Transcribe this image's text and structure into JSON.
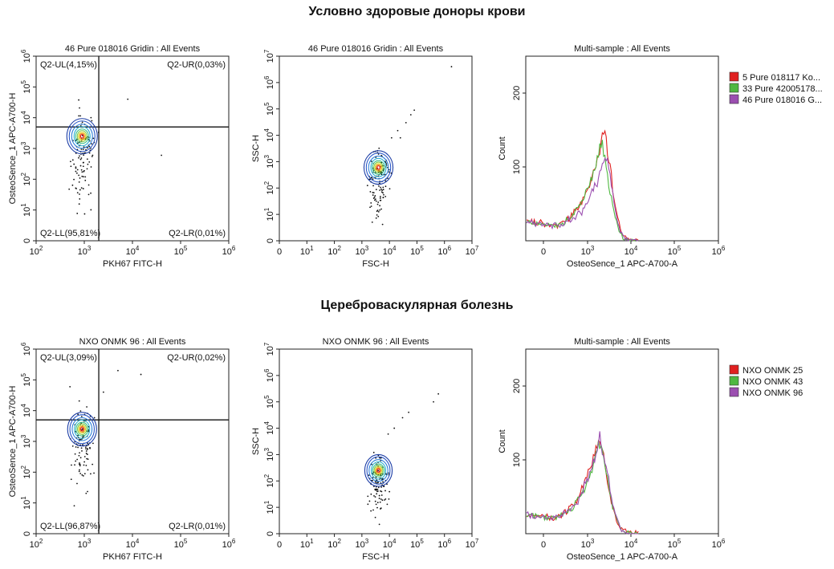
{
  "sections": [
    {
      "title": "Условно здоровые доноры крови"
    },
    {
      "title": "Цереброваскулярная болезнь"
    }
  ],
  "chart_data": [
    {
      "type": "contour",
      "title": "46 Pure 018016 Gridin : All Events",
      "xlabel": "PKH67 FITC-H",
      "ylabel": "OsteoSence_1 APC-A700-H",
      "x_scale": "log",
      "y_scale": "biexponential",
      "x_ticks": [
        "10^2",
        "10^3",
        "10^4",
        "10^5",
        "10^6"
      ],
      "y_ticks": [
        "0",
        "10^1",
        "10^2",
        "10^3",
        "10^4",
        "10^5",
        "10^6"
      ],
      "gate": {
        "x": 2000,
        "y": 5000
      },
      "quadrants": [
        {
          "name": "Q2-UL",
          "label": "Q2-UL(4,15%)",
          "value": 4.15
        },
        {
          "name": "Q2-UR",
          "label": "Q2-UR(0,03%)",
          "value": 0.03
        },
        {
          "name": "Q2-LL",
          "label": "Q2-LL(95,81%)",
          "value": 95.81
        },
        {
          "name": "Q2-LR",
          "label": "Q2-LR(0,01%)",
          "value": 0.01
        }
      ],
      "population_center": {
        "x": 900,
        "y": 2500
      }
    },
    {
      "type": "contour",
      "title": "46 Pure 018016 Gridin : All Events",
      "xlabel": "FSC-H",
      "ylabel": "SSC-H",
      "x_scale": "biexponential",
      "y_scale": "biexponential",
      "x_ticks": [
        "0",
        "10^1",
        "10^2",
        "10^3",
        "10^4",
        "10^5",
        "10^6",
        "10^7"
      ],
      "y_ticks": [
        "0",
        "10^1",
        "10^2",
        "10^3",
        "10^4",
        "10^5",
        "10^6",
        "10^7"
      ],
      "population_center": {
        "x": 4000,
        "y": 600
      }
    },
    {
      "type": "histogram",
      "title": "Multi-sample : All Events",
      "xlabel": "OsteoSence_1 APC-A700-A",
      "ylabel": "Count",
      "x_ticks": [
        "0",
        "10^3",
        "10^4",
        "10^5",
        "10^6"
      ],
      "y_ticks": [
        "100",
        "200"
      ],
      "ylim": [
        0,
        250
      ],
      "legend_position": "right",
      "series": [
        {
          "name": "5 Pure 018117 Ko...",
          "color": "#e02020",
          "peak_x": 2400,
          "peak": 145
        },
        {
          "name": "33 Pure 42005178...",
          "color": "#4fb840",
          "peak_x": 2100,
          "peak": 130
        },
        {
          "name": "46 Pure 018016 G...",
          "color": "#9b4fb0",
          "peak_x": 2600,
          "peak": 115
        }
      ]
    },
    {
      "type": "contour",
      "title": "NXO ONMK 96 : All Events",
      "xlabel": "PKH67 FITC-H",
      "ylabel": "OsteoSence_1 APC-A700-H",
      "x_scale": "log",
      "y_scale": "biexponential",
      "x_ticks": [
        "10^2",
        "10^3",
        "10^4",
        "10^5",
        "10^6"
      ],
      "y_ticks": [
        "0",
        "10^1",
        "10^2",
        "10^3",
        "10^4",
        "10^5",
        "10^6"
      ],
      "gate": {
        "x": 2000,
        "y": 5000
      },
      "quadrants": [
        {
          "name": "Q2-UL",
          "label": "Q2-UL(3,09%)",
          "value": 3.09
        },
        {
          "name": "Q2-UR",
          "label": "Q2-UR(0,02%)",
          "value": 0.02
        },
        {
          "name": "Q2-LL",
          "label": "Q2-LL(96,87%)",
          "value": 96.87
        },
        {
          "name": "Q2-LR",
          "label": "Q2-LR(0,01%)",
          "value": 0.01
        }
      ],
      "population_center": {
        "x": 900,
        "y": 2500
      }
    },
    {
      "type": "contour",
      "title": "NXO ONMK 96 : All Events",
      "xlabel": "FSC-H",
      "ylabel": "SSC-H",
      "x_scale": "biexponential",
      "y_scale": "biexponential",
      "x_ticks": [
        "0",
        "10^1",
        "10^2",
        "10^3",
        "10^4",
        "10^5",
        "10^6",
        "10^7"
      ],
      "y_ticks": [
        "0",
        "10^1",
        "10^2",
        "10^3",
        "10^4",
        "10^5",
        "10^6",
        "10^7"
      ],
      "population_center": {
        "x": 4000,
        "y": 250
      }
    },
    {
      "type": "histogram",
      "title": "Multi-sample : All Events",
      "xlabel": "OsteoSence_1 APC-A700-A",
      "ylabel": "Count",
      "x_ticks": [
        "0",
        "10^3",
        "10^4",
        "10^5",
        "10^6"
      ],
      "y_ticks": [
        "100",
        "200"
      ],
      "ylim": [
        0,
        250
      ],
      "legend_position": "right",
      "series": [
        {
          "name": "NXO ONMK 25",
          "color": "#e02020",
          "peak_x": 1800,
          "peak": 130
        },
        {
          "name": "NXO ONMK 43",
          "color": "#4fb840",
          "peak_x": 1900,
          "peak": 125
        },
        {
          "name": "NXO ONMK 96",
          "color": "#9b4fb0",
          "peak_x": 1950,
          "peak": 130
        }
      ]
    }
  ]
}
